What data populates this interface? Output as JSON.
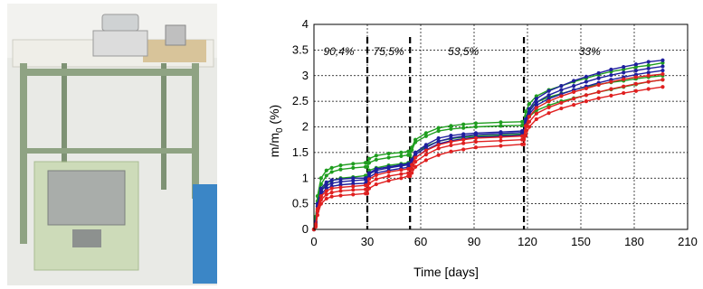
{
  "photo": {
    "description_icon": "lab-balance-setup-photo"
  },
  "chart_data": {
    "type": "line",
    "xlabel": "Time [days]",
    "ylabel_main": "m/m",
    "ylabel_sub": "0",
    "ylabel_unit": " (%)",
    "xlim": [
      0,
      210
    ],
    "ylim": [
      0,
      4
    ],
    "x_ticks": [
      0,
      30,
      60,
      90,
      120,
      150,
      180,
      210
    ],
    "y_ticks": [
      0,
      0.5,
      1,
      1.5,
      2,
      2.5,
      3,
      3.5,
      4
    ],
    "grid": true,
    "phase_boundaries": [
      30,
      54,
      118
    ],
    "phases": [
      {
        "label": "90,4%",
        "x": 14
      },
      {
        "label": "75,5%",
        "x": 42
      },
      {
        "label": "53,5%",
        "x": 84
      },
      {
        "label": "33%",
        "x": 155
      }
    ],
    "x": [
      0,
      1,
      2,
      4,
      7,
      10,
      15,
      22,
      29,
      30,
      31,
      35,
      42,
      49,
      53,
      54,
      55,
      57,
      63,
      70,
      77,
      84,
      91,
      105,
      117,
      118,
      119,
      121,
      125,
      132,
      139,
      146,
      153,
      160,
      167,
      174,
      181,
      188,
      196
    ],
    "series": [
      {
        "color": "#1f9e1f",
        "values": [
          0,
          0.25,
          0.65,
          1.0,
          1.15,
          1.2,
          1.25,
          1.28,
          1.3,
          1.3,
          1.38,
          1.44,
          1.48,
          1.5,
          1.52,
          1.52,
          1.6,
          1.75,
          1.88,
          1.98,
          2.02,
          2.05,
          2.07,
          2.09,
          2.1,
          2.1,
          2.3,
          2.45,
          2.6,
          2.72,
          2.8,
          2.88,
          2.95,
          3.02,
          3.08,
          3.12,
          3.17,
          3.2,
          3.25
        ]
      },
      {
        "color": "#1f9e1f",
        "values": [
          0,
          0.2,
          0.55,
          0.88,
          1.05,
          1.12,
          1.17,
          1.2,
          1.22,
          1.22,
          1.3,
          1.36,
          1.4,
          1.43,
          1.45,
          1.45,
          1.55,
          1.7,
          1.82,
          1.92,
          1.96,
          1.98,
          2.0,
          2.02,
          2.03,
          2.03,
          2.2,
          2.35,
          2.48,
          2.58,
          2.65,
          2.72,
          2.78,
          2.83,
          2.87,
          2.9,
          2.94,
          2.97,
          3.0
        ]
      },
      {
        "color": "#1f9e1f",
        "values": [
          0,
          0.15,
          0.45,
          0.75,
          0.9,
          0.95,
          1.0,
          1.02,
          1.05,
          1.05,
          1.15,
          1.2,
          1.25,
          1.28,
          1.3,
          1.3,
          1.38,
          1.5,
          1.62,
          1.72,
          1.77,
          1.8,
          1.82,
          1.84,
          1.86,
          1.86,
          2.05,
          2.2,
          2.32,
          2.42,
          2.5,
          2.56,
          2.62,
          2.68,
          2.73,
          2.78,
          2.83,
          2.88,
          2.92
        ]
      },
      {
        "color": "#1f1f9e",
        "values": [
          0,
          0.15,
          0.5,
          0.8,
          0.92,
          0.96,
          0.98,
          1.0,
          1.0,
          1.0,
          1.1,
          1.18,
          1.22,
          1.26,
          1.28,
          1.28,
          1.36,
          1.5,
          1.65,
          1.78,
          1.83,
          1.86,
          1.88,
          1.9,
          1.92,
          1.92,
          2.15,
          2.35,
          2.55,
          2.7,
          2.8,
          2.9,
          2.98,
          3.05,
          3.12,
          3.17,
          3.22,
          3.27,
          3.3
        ]
      },
      {
        "color": "#1f1f9e",
        "values": [
          0,
          0.12,
          0.45,
          0.75,
          0.86,
          0.9,
          0.93,
          0.95,
          0.97,
          0.97,
          1.08,
          1.15,
          1.2,
          1.24,
          1.26,
          1.26,
          1.33,
          1.46,
          1.6,
          1.72,
          1.78,
          1.82,
          1.85,
          1.87,
          1.89,
          1.89,
          2.1,
          2.3,
          2.48,
          2.62,
          2.72,
          2.8,
          2.88,
          2.95,
          3.01,
          3.06,
          3.1,
          3.14,
          3.18
        ]
      },
      {
        "color": "#1f1f9e",
        "values": [
          0,
          0.1,
          0.4,
          0.68,
          0.8,
          0.84,
          0.87,
          0.89,
          0.9,
          0.9,
          1.02,
          1.1,
          1.15,
          1.19,
          1.21,
          1.21,
          1.28,
          1.4,
          1.55,
          1.67,
          1.73,
          1.77,
          1.8,
          1.82,
          1.84,
          1.84,
          2.05,
          2.25,
          2.42,
          2.55,
          2.64,
          2.72,
          2.79,
          2.86,
          2.92,
          2.97,
          3.02,
          3.06,
          3.1
        ]
      },
      {
        "color": "#e02020",
        "values": [
          0,
          0.1,
          0.4,
          0.65,
          0.75,
          0.8,
          0.82,
          0.84,
          0.86,
          0.86,
          0.98,
          1.06,
          1.12,
          1.16,
          1.18,
          1.18,
          1.26,
          1.4,
          1.54,
          1.65,
          1.71,
          1.75,
          1.78,
          1.8,
          1.82,
          1.82,
          2.02,
          2.2,
          2.37,
          2.5,
          2.6,
          2.68,
          2.75,
          2.82,
          2.88,
          2.93,
          2.97,
          3.0,
          3.03
        ]
      },
      {
        "color": "#e02020",
        "values": [
          0,
          0.08,
          0.35,
          0.58,
          0.68,
          0.72,
          0.75,
          0.77,
          0.78,
          0.78,
          0.9,
          0.98,
          1.04,
          1.08,
          1.1,
          1.1,
          1.18,
          1.32,
          1.46,
          1.58,
          1.64,
          1.68,
          1.71,
          1.73,
          1.75,
          1.75,
          1.93,
          2.1,
          2.26,
          2.38,
          2.47,
          2.55,
          2.62,
          2.68,
          2.74,
          2.79,
          2.84,
          2.88,
          2.92
        ]
      },
      {
        "color": "#e02020",
        "values": [
          0,
          0.05,
          0.28,
          0.5,
          0.6,
          0.64,
          0.66,
          0.68,
          0.7,
          0.7,
          0.8,
          0.88,
          0.95,
          1.0,
          1.04,
          1.04,
          1.1,
          1.22,
          1.35,
          1.45,
          1.52,
          1.56,
          1.6,
          1.63,
          1.66,
          1.66,
          1.83,
          2.0,
          2.15,
          2.27,
          2.36,
          2.43,
          2.5,
          2.56,
          2.61,
          2.66,
          2.7,
          2.74,
          2.78
        ]
      }
    ]
  }
}
